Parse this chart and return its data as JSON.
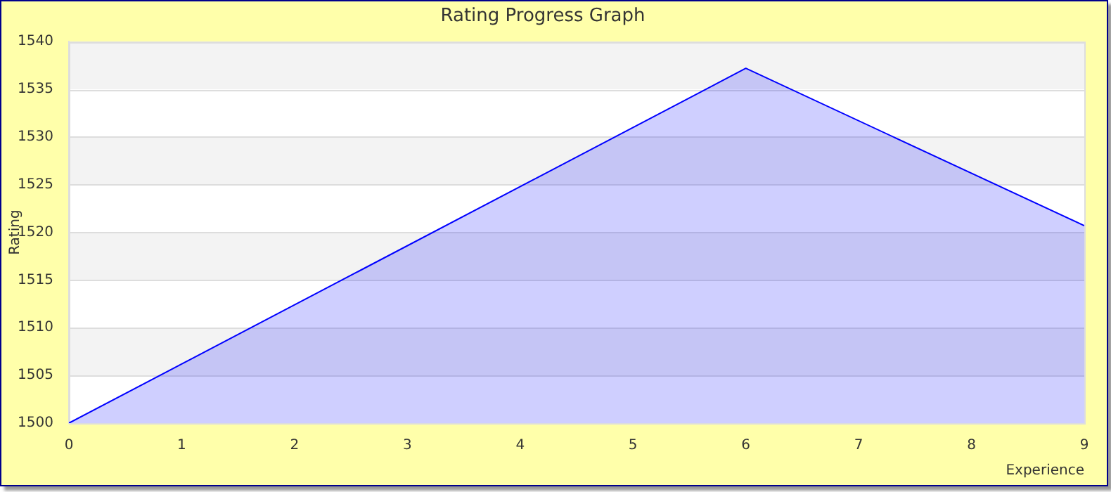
{
  "chart_data": {
    "type": "area",
    "title": "Rating Progress Graph",
    "xlabel": "Experience",
    "ylabel": "Rating",
    "x": [
      0,
      6,
      9
    ],
    "series": [
      {
        "color": "#0000ff",
        "values": [
          1500,
          1537.2,
          1520.7
        ]
      }
    ],
    "xlim": [
      0,
      9
    ],
    "xticks": [
      0,
      1,
      2,
      3,
      4,
      5,
      6,
      7,
      8,
      9
    ],
    "ylim": [
      1500,
      1540
    ],
    "yticks": [
      1500,
      1505,
      1510,
      1515,
      1520,
      1525,
      1530,
      1535,
      1540
    ],
    "grid": "y",
    "legend": false,
    "marker": "none",
    "line_style": "solid"
  }
}
